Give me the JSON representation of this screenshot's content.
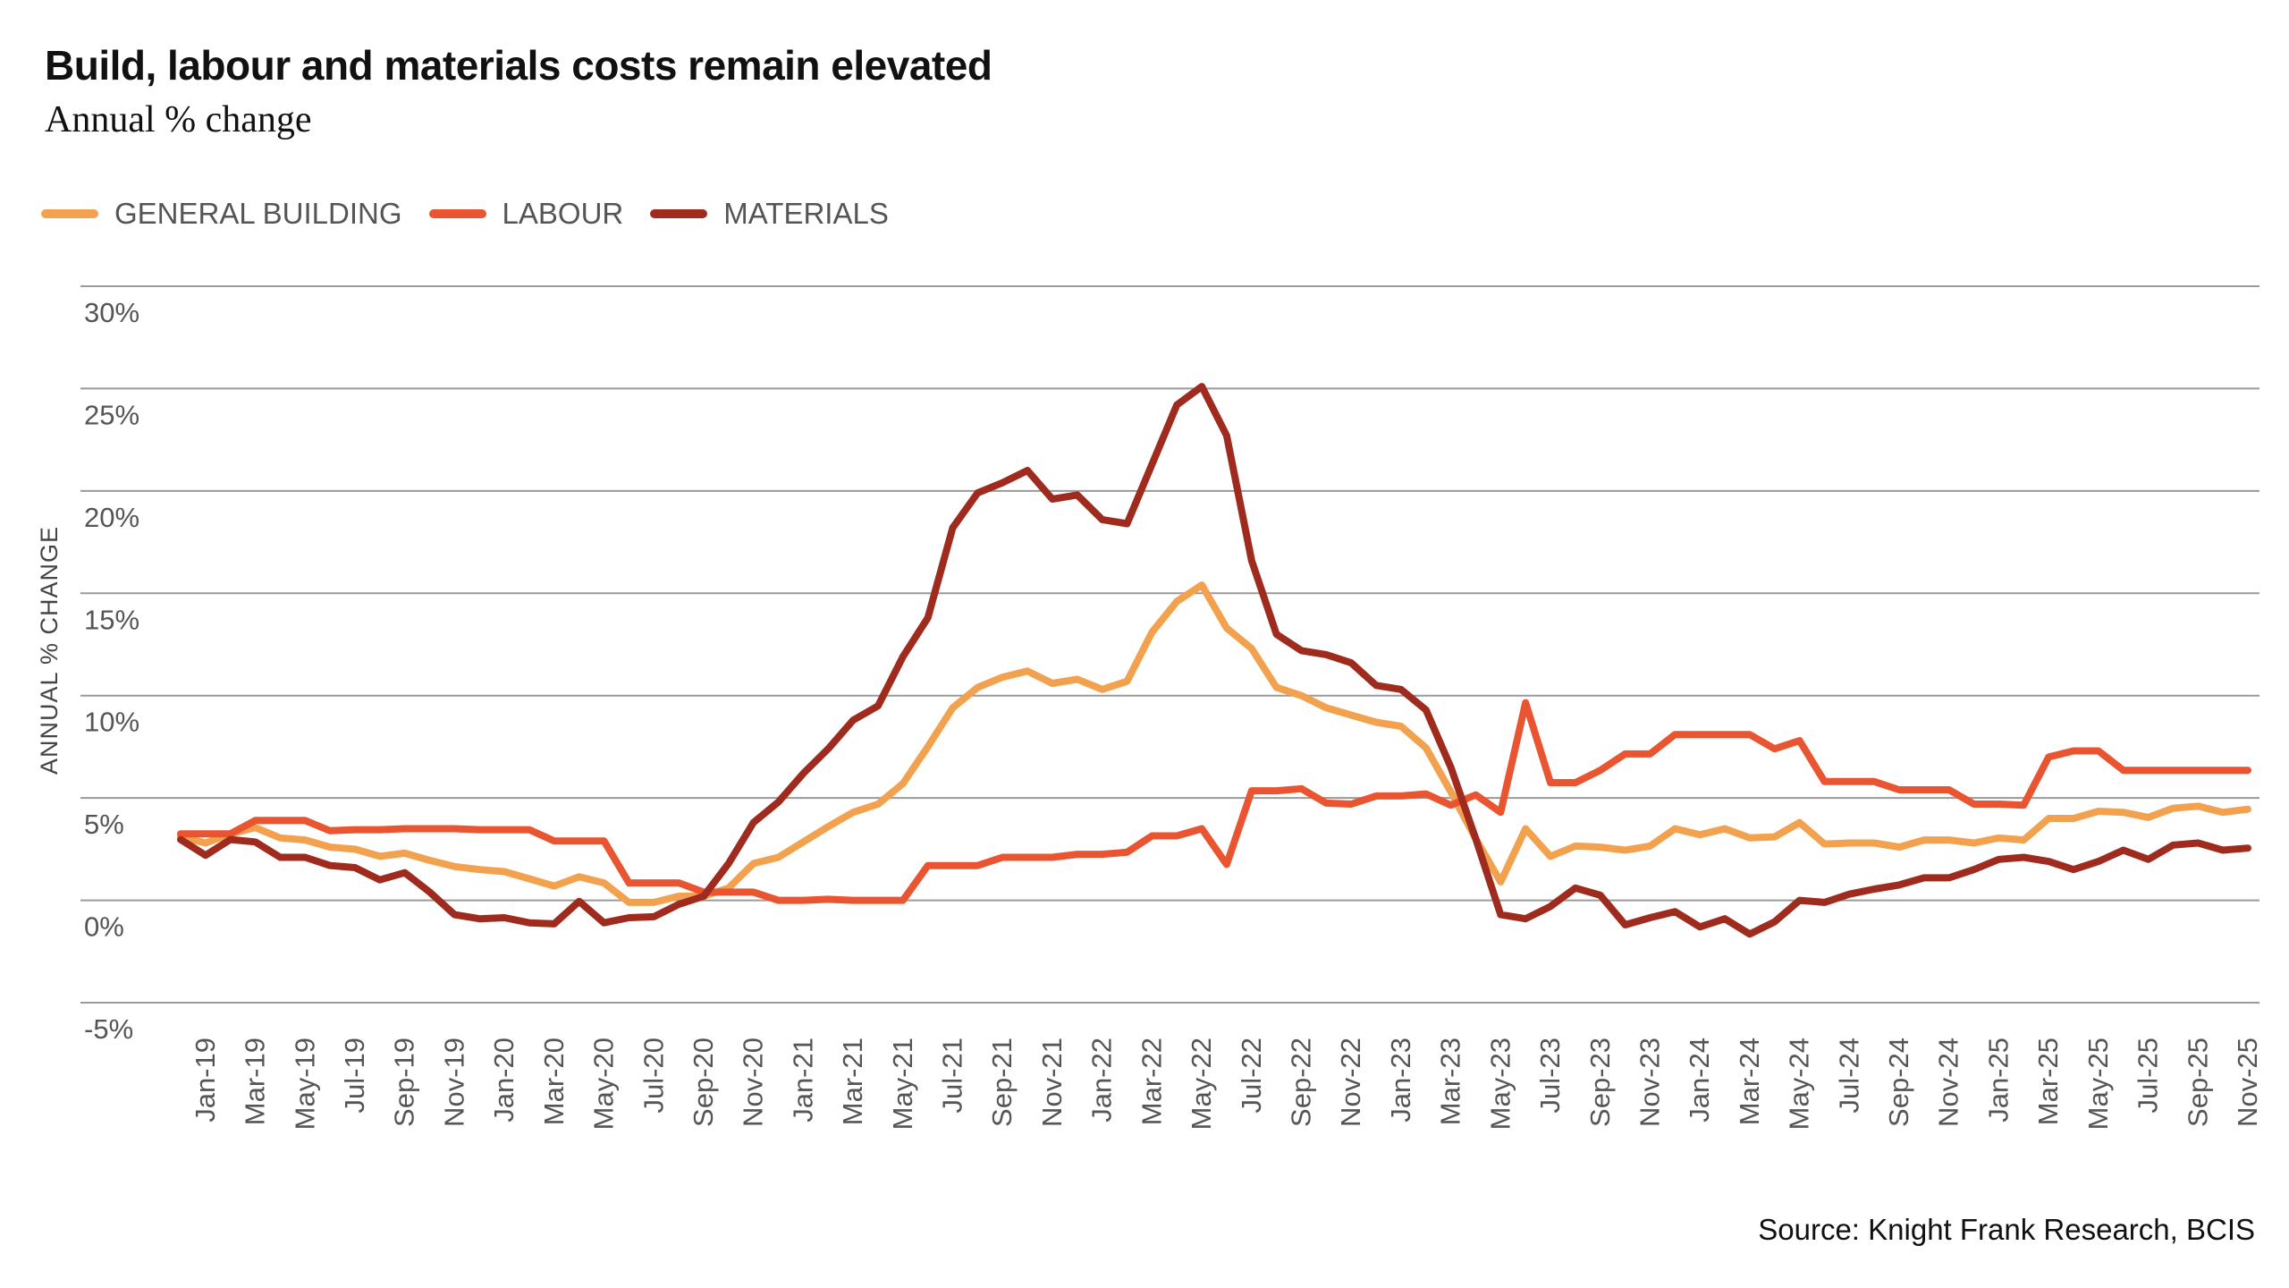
{
  "title": "Build, labour and materials costs remain elevated",
  "subtitle": "Annual % change",
  "source": "Source: Knight Frank Research, BCIS",
  "legend": [
    {
      "label": "GENERAL BUILDING",
      "color": "#F2A24E"
    },
    {
      "label": "LABOUR",
      "color": "#E85530"
    },
    {
      "label": "MATERIALS",
      "color": "#9E2B1D"
    }
  ],
  "chart_data": {
    "type": "line",
    "title": "Build, labour and materials costs remain elevated",
    "subtitle": "Annual % change",
    "ylabel": "ANNUAL % CHANGE",
    "xlabel": "",
    "ylim": [
      -5,
      30
    ],
    "y_ticks": [
      30,
      25,
      20,
      15,
      10,
      5,
      0,
      -5
    ],
    "y_tick_labels": [
      "30%",
      "25%",
      "20%",
      "15%",
      "10%",
      "5%",
      "0%",
      "-5%"
    ],
    "grid": true,
    "legend_position": "top-left",
    "categories": [
      "Dec-18",
      "Jan-19",
      "Feb-19",
      "Mar-19",
      "Apr-19",
      "May-19",
      "Jun-19",
      "Jul-19",
      "Aug-19",
      "Sep-19",
      "Oct-19",
      "Nov-19",
      "Dec-19",
      "Jan-20",
      "Feb-20",
      "Mar-20",
      "Apr-20",
      "May-20",
      "Jun-20",
      "Jul-20",
      "Aug-20",
      "Sep-20",
      "Oct-20",
      "Nov-20",
      "Dec-20",
      "Jan-21",
      "Feb-21",
      "Mar-21",
      "Apr-21",
      "May-21",
      "Jun-21",
      "Jul-21",
      "Aug-21",
      "Sep-21",
      "Oct-21",
      "Nov-21",
      "Dec-21",
      "Jan-22",
      "Feb-22",
      "Mar-22",
      "Apr-22",
      "May-22",
      "Jun-22",
      "Jul-22",
      "Aug-22",
      "Sep-22",
      "Oct-22",
      "Nov-22",
      "Dec-22",
      "Jan-23",
      "Feb-23",
      "Mar-23",
      "Apr-23",
      "May-23",
      "Jun-23",
      "Jul-23",
      "Aug-23",
      "Sep-23",
      "Oct-23",
      "Nov-23",
      "Dec-23",
      "Jan-24",
      "Feb-24",
      "Mar-24",
      "Apr-24",
      "May-24",
      "Jun-24",
      "Jul-24",
      "Aug-24",
      "Sep-24",
      "Oct-24",
      "Nov-24",
      "Dec-24",
      "Jan-25",
      "Feb-25",
      "Mar-25",
      "Apr-25",
      "May-25",
      "Jun-25",
      "Jul-25",
      "Aug-25",
      "Sep-25",
      "Oct-25",
      "Nov-25"
    ],
    "x_tick_labels": [
      "Jan-19",
      "Mar-19",
      "May-19",
      "Jul-19",
      "Sep-19",
      "Nov-19",
      "Jan-20",
      "Mar-20",
      "May-20",
      "Jul-20",
      "Sep-20",
      "Nov-20",
      "Jan-21",
      "Mar-21",
      "May-21",
      "Jul-21",
      "Sep-21",
      "Nov-21",
      "Jan-22",
      "Mar-22",
      "May-22",
      "Jul-22",
      "Sep-22",
      "Nov-22",
      "Jan-23",
      "Mar-23",
      "May-23",
      "Jul-23",
      "Sep-23",
      "Nov-23",
      "Jan-24",
      "Mar-24",
      "May-24",
      "Jul-24",
      "Sep-24",
      "Nov-24",
      "Jan-25",
      "Mar-25",
      "May-25",
      "Jul-25",
      "Sep-25",
      "Nov-25"
    ],
    "series": [
      {
        "name": "GENERAL BUILDING",
        "color": "#F2A24E",
        "values": [
          3.1,
          2.8,
          3.25,
          3.55,
          3.05,
          2.95,
          2.6,
          2.5,
          2.15,
          2.3,
          1.95,
          1.65,
          1.5,
          1.4,
          1.05,
          0.7,
          1.15,
          0.85,
          -0.1,
          -0.1,
          0.2,
          0.2,
          0.6,
          1.8,
          2.1,
          2.85,
          3.6,
          4.3,
          4.7,
          5.7,
          7.5,
          9.4,
          10.4,
          10.9,
          11.2,
          10.6,
          10.8,
          10.3,
          10.7,
          13.1,
          14.6,
          15.4,
          13.3,
          12.3,
          10.4,
          10.0,
          9.4,
          9.05,
          8.7,
          8.5,
          7.45,
          5.3,
          3.0,
          0.9,
          3.5,
          2.15,
          2.65,
          2.6,
          2.45,
          2.65,
          3.5,
          3.2,
          3.5,
          3.05,
          3.1,
          3.8,
          2.75,
          2.8,
          2.8,
          2.6,
          2.95,
          2.95,
          2.8,
          3.05,
          2.95,
          4.0,
          4.0,
          4.35,
          4.3,
          4.05,
          4.5,
          4.6,
          4.3,
          4.45
        ]
      },
      {
        "name": "LABOUR",
        "color": "#E85530",
        "values": [
          3.25,
          3.25,
          3.25,
          3.9,
          3.9,
          3.9,
          3.4,
          3.45,
          3.45,
          3.5,
          3.5,
          3.5,
          3.45,
          3.45,
          3.45,
          2.9,
          2.9,
          2.9,
          0.85,
          0.85,
          0.85,
          0.4,
          0.4,
          0.4,
          0,
          0,
          0.05,
          0,
          0,
          0,
          1.7,
          1.7,
          1.7,
          2.1,
          2.1,
          2.1,
          2.25,
          2.25,
          2.35,
          3.15,
          3.15,
          3.5,
          1.75,
          5.35,
          5.35,
          5.45,
          4.75,
          4.7,
          5.1,
          5.1,
          5.2,
          4.65,
          5.15,
          4.3,
          9.65,
          5.75,
          5.75,
          6.35,
          7.15,
          7.15,
          8.1,
          8.1,
          8.1,
          8.1,
          7.4,
          7.8,
          5.8,
          5.8,
          5.8,
          5.4,
          5.4,
          5.4,
          4.7,
          4.7,
          4.65,
          7.0,
          7.3,
          7.3,
          6.35,
          6.35,
          6.35,
          6.35,
          6.35,
          6.35
        ]
      },
      {
        "name": "MATERIALS",
        "color": "#9E2B1D",
        "values": [
          2.97,
          2.2,
          2.97,
          2.85,
          2.1,
          2.1,
          1.7,
          1.6,
          1.0,
          1.35,
          0.4,
          -0.7,
          -0.9,
          -0.85,
          -1.1,
          -1.15,
          -0.05,
          -1.1,
          -0.85,
          -0.8,
          -0.2,
          0.2,
          1.8,
          3.8,
          4.8,
          6.2,
          7.4,
          8.8,
          9.5,
          11.9,
          13.8,
          18.2,
          19.9,
          20.4,
          21.0,
          19.6,
          19.8,
          18.6,
          18.4,
          21.3,
          24.2,
          25.1,
          22.7,
          16.6,
          13.0,
          12.2,
          12.0,
          11.6,
          10.5,
          10.3,
          9.3,
          6.5,
          3.0,
          -0.7,
          -0.9,
          -0.3,
          0.6,
          0.25,
          -1.2,
          -0.85,
          -0.55,
          -1.3,
          -0.9,
          -1.65,
          -1.05,
          0,
          -0.1,
          0.3,
          0.55,
          0.75,
          1.1,
          1.1,
          1.5,
          2.0,
          2.1,
          1.9,
          1.5,
          1.9,
          2.45,
          2.0,
          2.7,
          2.8,
          2.45,
          2.55
        ]
      }
    ]
  }
}
